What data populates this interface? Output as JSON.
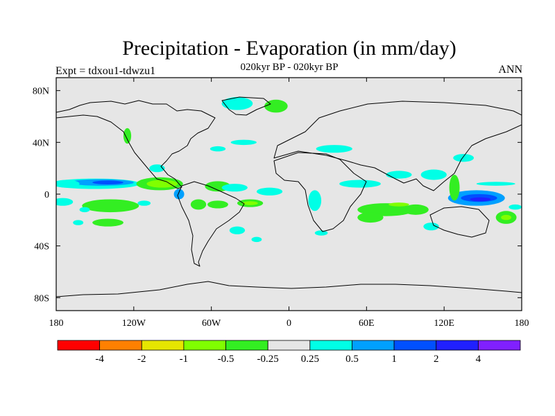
{
  "chart_data": {
    "type": "heatmap",
    "title": "Precipitation - Evaporation (in mm/day)",
    "subtitle": "020kyr BP - 020kyr BP",
    "left_label": "Expt = tdxou1-tdwzu1",
    "right_label": "ANN",
    "x_ticks": [
      {
        "value": -180,
        "label": "180"
      },
      {
        "value": -120,
        "label": "120W"
      },
      {
        "value": -60,
        "label": "60W"
      },
      {
        "value": 0,
        "label": "0"
      },
      {
        "value": 60,
        "label": "60E"
      },
      {
        "value": 120,
        "label": "120E"
      },
      {
        "value": 180,
        "label": "180"
      }
    ],
    "y_ticks": [
      {
        "value": 80,
        "label": "80N"
      },
      {
        "value": 40,
        "label": "40N"
      },
      {
        "value": 0,
        "label": "0"
      },
      {
        "value": -40,
        "label": "40S"
      },
      {
        "value": -80,
        "label": "80S"
      }
    ],
    "xlim": [
      -180,
      180
    ],
    "ylim": [
      -90,
      90
    ],
    "colorbar": {
      "colors": [
        "#ff0000",
        "#ff8000",
        "#e6e600",
        "#80ff00",
        "#33ee22",
        "#e6e6e6",
        "#00ffe6",
        "#00a0ff",
        "#0050ff",
        "#2020ff",
        "#8020ff"
      ],
      "labels": [
        "-4",
        "-2",
        "-1",
        "-0.5",
        "-0.25",
        "0.25",
        "0.5",
        "1",
        "2",
        "4"
      ]
    },
    "background_color": "#e6e6e6",
    "regions": [
      {
        "bin": 6,
        "lon": -150,
        "lat": 8,
        "rlon": 35,
        "rlat": 4
      },
      {
        "bin": 7,
        "lon": -145,
        "lat": 9,
        "rlon": 25,
        "rlat": 2.5
      },
      {
        "bin": 8,
        "lon": -140,
        "lat": 9,
        "rlon": 12,
        "rlat": 1.5
      },
      {
        "bin": 6,
        "lon": -172,
        "lat": 8,
        "rlon": 10,
        "rlat": 3
      },
      {
        "bin": 4,
        "lon": -100,
        "lat": 8,
        "rlon": 18,
        "rlat": 5
      },
      {
        "bin": 3,
        "lon": -98,
        "lat": 8,
        "rlon": 12,
        "rlat": 3
      },
      {
        "bin": 7,
        "lon": -85,
        "lat": 0,
        "rlon": 4,
        "rlat": 4
      },
      {
        "bin": 6,
        "lon": -175,
        "lat": -6,
        "rlon": 8,
        "rlat": 3
      },
      {
        "bin": 3,
        "lon": -140,
        "lat": -8,
        "rlon": 14,
        "rlat": 3
      },
      {
        "bin": 4,
        "lon": -138,
        "lat": -9,
        "rlon": 22,
        "rlat": 5
      },
      {
        "bin": 4,
        "lon": -140,
        "lat": -22,
        "rlon": 12,
        "rlat": 3
      },
      {
        "bin": 6,
        "lon": -163,
        "lat": -22,
        "rlon": 4,
        "rlat": 2
      },
      {
        "bin": 6,
        "lon": -158,
        "lat": -12,
        "rlon": 4,
        "rlat": 2
      },
      {
        "bin": 6,
        "lon": -102,
        "lat": 20,
        "rlon": 6,
        "rlat": 3
      },
      {
        "bin": 6,
        "lon": -112,
        "lat": -7,
        "rlon": 5,
        "rlat": 2
      },
      {
        "bin": 4,
        "lon": -70,
        "lat": -8,
        "rlon": 6,
        "rlat": 4
      },
      {
        "bin": 4,
        "lon": -55,
        "lat": 6,
        "rlon": 10,
        "rlat": 4
      },
      {
        "bin": 6,
        "lon": -42,
        "lat": 5,
        "rlon": 10,
        "rlat": 3
      },
      {
        "bin": 4,
        "lon": -30,
        "lat": -7,
        "rlon": 10,
        "rlat": 3
      },
      {
        "bin": 3,
        "lon": -30,
        "lat": -7,
        "rlon": 6,
        "rlat": 1.5
      },
      {
        "bin": 4,
        "lon": -55,
        "lat": -8,
        "rlon": 8,
        "rlat": 3
      },
      {
        "bin": 6,
        "lon": -40,
        "lat": -28,
        "rlon": 6,
        "rlat": 3
      },
      {
        "bin": 6,
        "lon": -25,
        "lat": -35,
        "rlon": 4,
        "rlat": 2
      },
      {
        "bin": 6,
        "lon": -15,
        "lat": 2,
        "rlon": 10,
        "rlat": 3
      },
      {
        "bin": 6,
        "lon": -40,
        "lat": 70,
        "rlon": 12,
        "rlat": 5
      },
      {
        "bin": 4,
        "lon": -10,
        "lat": 68,
        "rlon": 9,
        "rlat": 5
      },
      {
        "bin": 6,
        "lon": -35,
        "lat": 40,
        "rlon": 10,
        "rlat": 2
      },
      {
        "bin": 6,
        "lon": -55,
        "lat": 35,
        "rlon": 6,
        "rlat": 2
      },
      {
        "bin": 6,
        "lon": 35,
        "lat": 35,
        "rlon": 14,
        "rlat": 3
      },
      {
        "bin": 4,
        "lon": -125,
        "lat": 45,
        "rlon": 3,
        "rlat": 6
      },
      {
        "bin": 6,
        "lon": 55,
        "lat": 8,
        "rlon": 16,
        "rlat": 3
      },
      {
        "bin": 6,
        "lon": 85,
        "lat": 15,
        "rlon": 10,
        "rlat": 3
      },
      {
        "bin": 6,
        "lon": 112,
        "lat": 15,
        "rlon": 10,
        "rlat": 4
      },
      {
        "bin": 6,
        "lon": 20,
        "lat": -5,
        "rlon": 5,
        "rlat": 8
      },
      {
        "bin": 4,
        "lon": 75,
        "lat": -12,
        "rlon": 22,
        "rlat": 5
      },
      {
        "bin": 3,
        "lon": 85,
        "lat": -8,
        "rlon": 8,
        "rlat": 1.5
      },
      {
        "bin": 4,
        "lon": 63,
        "lat": -18,
        "rlon": 10,
        "rlat": 4
      },
      {
        "bin": 4,
        "lon": 98,
        "lat": -12,
        "rlon": 10,
        "rlat": 4
      },
      {
        "bin": 6,
        "lon": 110,
        "lat": -25,
        "rlon": 6,
        "rlat": 3
      },
      {
        "bin": 6,
        "lon": 25,
        "lat": -30,
        "rlon": 5,
        "rlat": 2
      },
      {
        "bin": 7,
        "lon": 145,
        "lat": -3,
        "rlon": 22,
        "rlat": 6
      },
      {
        "bin": 8,
        "lon": 147,
        "lat": -3,
        "rlon": 14,
        "rlat": 3
      },
      {
        "bin": 9,
        "lon": 148,
        "lat": -4,
        "rlon": 8,
        "rlat": 1.5
      },
      {
        "bin": 4,
        "lon": 128,
        "lat": 5,
        "rlon": 4,
        "rlat": 10
      },
      {
        "bin": 6,
        "lon": 135,
        "lat": 28,
        "rlon": 8,
        "rlat": 3
      },
      {
        "bin": 4,
        "lon": 168,
        "lat": -18,
        "rlon": 8,
        "rlat": 5
      },
      {
        "bin": 3,
        "lon": 168,
        "lat": -18,
        "rlon": 4,
        "rlat": 2
      },
      {
        "bin": 6,
        "lon": 160,
        "lat": 8,
        "rlon": 15,
        "rlat": 1.5
      },
      {
        "bin": 6,
        "lon": 175,
        "lat": -10,
        "rlon": 5,
        "rlat": 2
      }
    ]
  }
}
